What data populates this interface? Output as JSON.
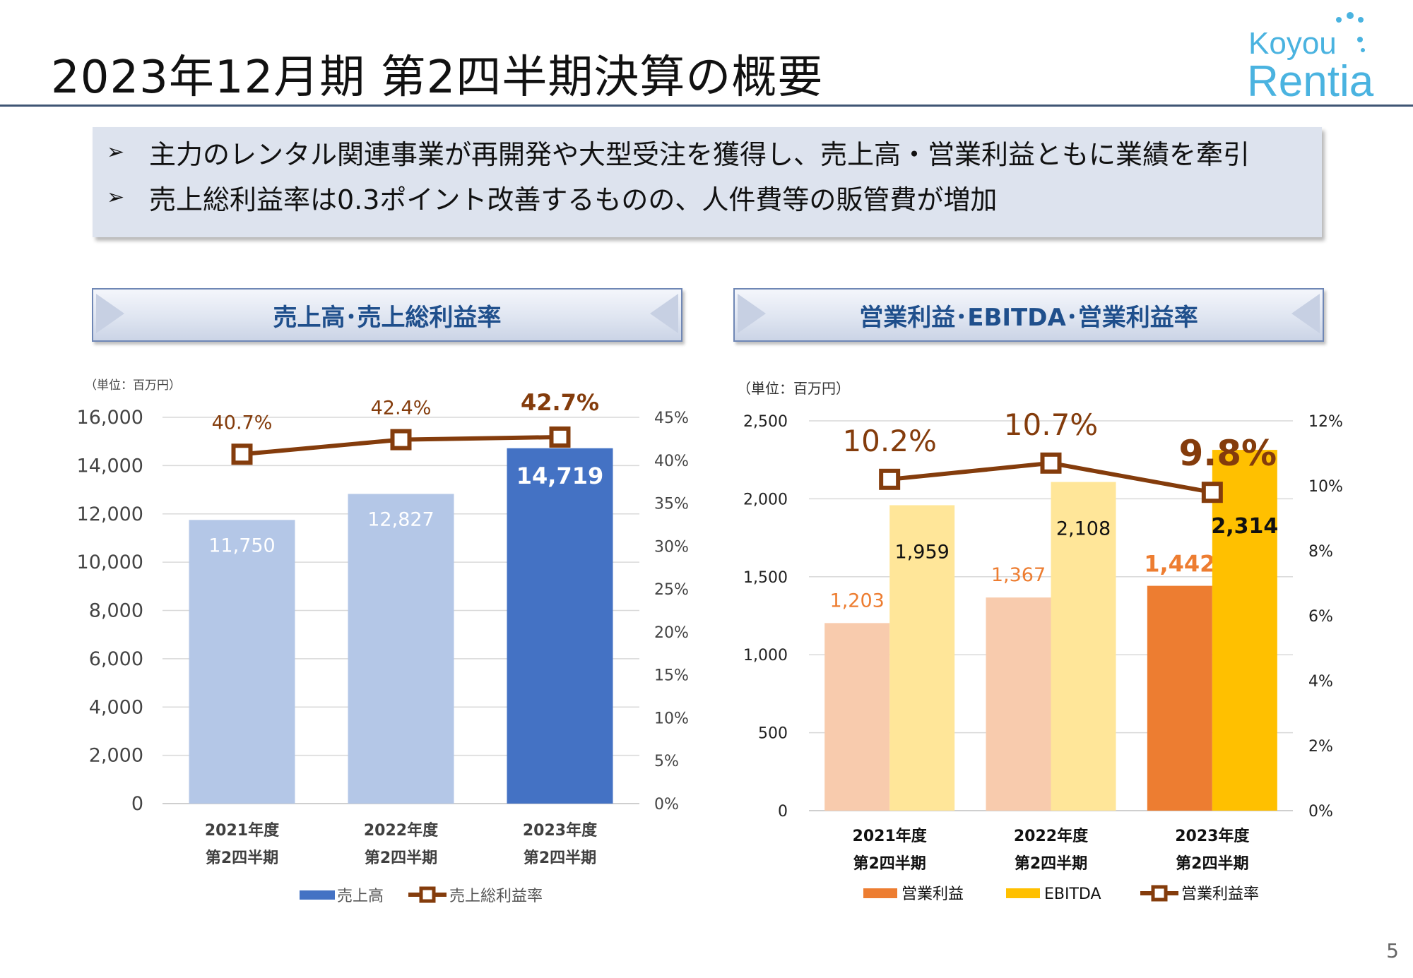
{
  "header": {
    "title": "2023年12月期 第2四半期決算の概要",
    "logo_top": "Koyou",
    "logo_bottom": "Rentia",
    "logo_color": "#4ab3e0"
  },
  "summary": {
    "bullets": [
      "主力のレンタル関連事業が再開発や大型受注を獲得し、売上高・営業利益ともに業績を牽引",
      "売上総利益率は0.3ポイント改善するものの、人件費等の販管費が増加"
    ],
    "bullet_icon": "arrow-right-icon"
  },
  "page_number": "5",
  "chart_data": [
    {
      "type": "bar",
      "banner": "売上高･売上総利益率",
      "unit_note": "（単位：百万円）",
      "categories": [
        [
          "2021年度",
          "第2四半期"
        ],
        [
          "2022年度",
          "第2四半期"
        ],
        [
          "2023年度",
          "第2四半期"
        ]
      ],
      "series": [
        {
          "name": "売上高",
          "kind": "bar",
          "values": [
            11750,
            12827,
            14719
          ],
          "labels": [
            "11,750",
            "12,827",
            "14,719"
          ],
          "colors": [
            "#b4c7e7",
            "#b4c7e7",
            "#4472c4"
          ]
        },
        {
          "name": "売上総利益率",
          "kind": "line",
          "axis": "right",
          "values": [
            40.7,
            42.4,
            42.7
          ],
          "labels": [
            "40.7%",
            "42.4%",
            "42.7%"
          ],
          "color": "#843c0c"
        }
      ],
      "ylim": [
        0,
        16000
      ],
      "yticks": [
        "0",
        "2,000",
        "4,000",
        "6,000",
        "8,000",
        "10,000",
        "12,000",
        "14,000",
        "16,000"
      ],
      "y2lim": [
        0,
        45
      ],
      "y2ticks": [
        "0%",
        "5%",
        "10%",
        "15%",
        "20%",
        "25%",
        "30%",
        "35%",
        "40%",
        "45%"
      ],
      "legend": "bottom",
      "grid": true
    },
    {
      "type": "bar",
      "banner": "営業利益･EBITDA･営業利益率",
      "unit_note": "（単位：百万円）",
      "categories": [
        [
          "2021年度",
          "第2四半期"
        ],
        [
          "2022年度",
          "第2四半期"
        ],
        [
          "2023年度",
          "第2四半期"
        ]
      ],
      "series": [
        {
          "name": "営業利益",
          "kind": "bar",
          "values": [
            1203,
            1367,
            1442
          ],
          "labels": [
            "1,203",
            "1,367",
            "1,442"
          ],
          "colors": [
            "#f8cbad",
            "#f8cbad",
            "#ed7d31"
          ],
          "legend_color": "#ed7d31"
        },
        {
          "name": "EBITDA",
          "kind": "bar",
          "values": [
            1959,
            2108,
            2314
          ],
          "labels": [
            "1,959",
            "2,108",
            "2,314"
          ],
          "colors": [
            "#ffe699",
            "#ffe699",
            "#ffc000"
          ],
          "legend_color": "#ffc000"
        },
        {
          "name": "営業利益率",
          "kind": "line",
          "axis": "right",
          "values": [
            10.2,
            10.7,
            9.8
          ],
          "labels": [
            "10.2%",
            "10.7%",
            "9.8%"
          ],
          "color": "#843c0c"
        }
      ],
      "ylim": [
        0,
        2500
      ],
      "yticks": [
        "0",
        "500",
        "1,000",
        "1,500",
        "2,000",
        "2,500"
      ],
      "y2lim": [
        0,
        12
      ],
      "y2ticks": [
        "0%",
        "2%",
        "4%",
        "6%",
        "8%",
        "10%",
        "12%"
      ],
      "legend": "bottom",
      "grid": true
    }
  ]
}
